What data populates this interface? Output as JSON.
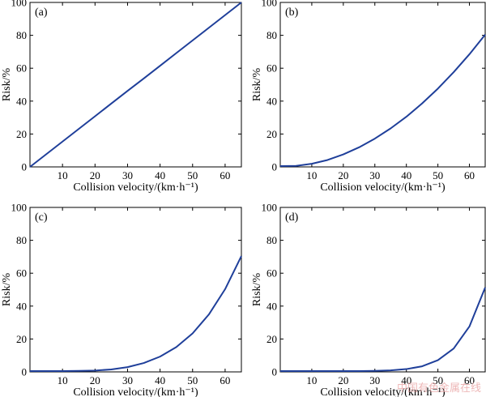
{
  "chart_data": [
    {
      "type": "line",
      "panel_label": "(a)",
      "xlabel": "Collision velocity/(km·h⁻¹)",
      "ylabel": "Risk/%",
      "xlim": [
        0,
        65
      ],
      "ylim": [
        0,
        100
      ],
      "xticks": [
        10,
        20,
        30,
        40,
        50,
        60
      ],
      "yticks": [
        0,
        20,
        40,
        60,
        80,
        100
      ],
      "grid": false,
      "color": "#1f3f9a",
      "series": [
        {
          "x": [
            0,
            5,
            10,
            15,
            20,
            25,
            30,
            35,
            40,
            45,
            50,
            55,
            60,
            65
          ],
          "y": [
            0,
            7.7,
            15.4,
            23.1,
            30.8,
            38.5,
            46.2,
            53.8,
            61.5,
            69.2,
            76.9,
            84.6,
            92.3,
            100
          ]
        }
      ]
    },
    {
      "type": "line",
      "panel_label": "(b)",
      "xlabel": "Collision velocity/(km·h⁻¹)",
      "ylabel": "Risk/%",
      "xlim": [
        0,
        65
      ],
      "ylim": [
        0,
        100
      ],
      "xticks": [
        10,
        20,
        30,
        40,
        50,
        60
      ],
      "yticks": [
        0,
        20,
        40,
        60,
        80,
        100
      ],
      "grid": false,
      "color": "#1f3f9a",
      "series": [
        {
          "x": [
            0,
            5,
            10,
            15,
            20,
            25,
            30,
            35,
            40,
            45,
            50,
            55,
            60,
            65
          ],
          "y": [
            0.5,
            0.6,
            1.9,
            4.2,
            7.6,
            11.9,
            17.2,
            23.4,
            30.5,
            38.6,
            47.6,
            57.6,
            68.5,
            80.4
          ]
        }
      ]
    },
    {
      "type": "line",
      "panel_label": "(c)",
      "xlabel": "Collision velocity/(km·h⁻¹)",
      "ylabel": "Risk/%",
      "xlim": [
        0,
        65
      ],
      "ylim": [
        0,
        100
      ],
      "xticks": [
        10,
        20,
        30,
        40,
        50,
        60
      ],
      "yticks": [
        0,
        20,
        40,
        60,
        80,
        100
      ],
      "grid": false,
      "color": "#1f3f9a",
      "series": [
        {
          "x": [
            0,
            5,
            10,
            15,
            20,
            25,
            30,
            35,
            40,
            45,
            50,
            55,
            60,
            65
          ],
          "y": [
            0.5,
            0.5,
            0.5,
            0.6,
            0.8,
            1.5,
            2.9,
            5.4,
            9.3,
            15.1,
            23.4,
            34.9,
            50.3,
            70.4
          ]
        }
      ]
    },
    {
      "type": "line",
      "panel_label": "(d)",
      "xlabel": "Collision velocity/(km·h⁻¹)",
      "ylabel": "Risk/%",
      "xlim": [
        0,
        65
      ],
      "ylim": [
        0,
        100
      ],
      "xticks": [
        10,
        20,
        30,
        40,
        50,
        60
      ],
      "yticks": [
        0,
        20,
        40,
        60,
        80,
        100
      ],
      "grid": false,
      "color": "#1f3f9a",
      "series": [
        {
          "x": [
            0,
            5,
            10,
            15,
            20,
            25,
            30,
            35,
            40,
            45,
            50,
            55,
            60,
            65
          ],
          "y": [
            0.5,
            0.5,
            0.5,
            0.5,
            0.5,
            0.5,
            0.6,
            0.9,
            1.7,
            3.4,
            7.1,
            14.2,
            27.6,
            51.3
          ]
        }
      ]
    }
  ],
  "watermark": "中国有色金属在线"
}
